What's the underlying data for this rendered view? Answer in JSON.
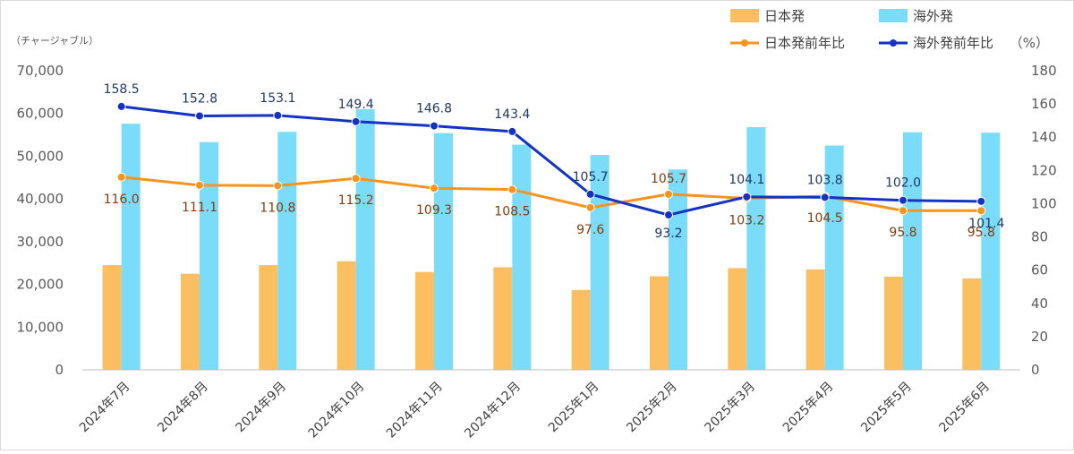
{
  "chart_data": {
    "type": "bar+line",
    "categories": [
      "2024年7月",
      "2024年8月",
      "2024年9月",
      "2024年10月",
      "2024年11月",
      "2024年12月",
      "2025年1月",
      "2025年2月",
      "2025年3月",
      "2025年4月",
      "2025年5月",
      "2025年6月"
    ],
    "bar_series": [
      {
        "name": "日本発",
        "color": "#fbbf62",
        "values": [
          24500,
          22500,
          24500,
          25400,
          22900,
          24000,
          18700,
          21900,
          23800,
          23500,
          21800,
          21400
        ]
      },
      {
        "name": "海外発",
        "color": "#7adcf9",
        "values": [
          57600,
          53300,
          55700,
          61000,
          55400,
          52700,
          50300,
          46900,
          56800,
          52500,
          55600,
          55500
        ]
      }
    ],
    "line_series": [
      {
        "name": "日本発前年比",
        "color": "#f7941d",
        "values": [
          116.0,
          111.1,
          110.8,
          115.2,
          109.3,
          108.5,
          97.6,
          105.7,
          103.2,
          104.5,
          95.8,
          95.8
        ],
        "labels": [
          "116.0",
          "111.1",
          "110.8",
          "115.2",
          "109.3",
          "108.5",
          "97.6",
          "105.7",
          "103.2",
          "104.5",
          "95.8",
          "95.8"
        ]
      },
      {
        "name": "海外発前年比",
        "color": "#1433c4",
        "values": [
          158.5,
          152.8,
          153.1,
          149.4,
          146.8,
          143.4,
          105.7,
          93.2,
          104.1,
          103.8,
          102.0,
          101.4
        ],
        "labels": [
          "158.5",
          "152.8",
          "153.1",
          "149.4",
          "146.8",
          "143.4",
          "105.7",
          "93.2",
          "104.1",
          "103.8",
          "102.0",
          "101.4"
        ]
      }
    ],
    "y_left": {
      "unit": "（チャージャブル）",
      "min": 0,
      "max": 70000,
      "step": 10000,
      "ticks": [
        "0",
        "10,000",
        "20,000",
        "30,000",
        "40,000",
        "50,000",
        "60,000",
        "70,000"
      ]
    },
    "y_right": {
      "unit": "（%）",
      "min": 0,
      "max": 180,
      "step": 20,
      "ticks": [
        "0",
        "20",
        "40",
        "60",
        "80",
        "100",
        "120",
        "140",
        "160",
        "180"
      ]
    },
    "legend_position": "top-right",
    "grid": false
  }
}
